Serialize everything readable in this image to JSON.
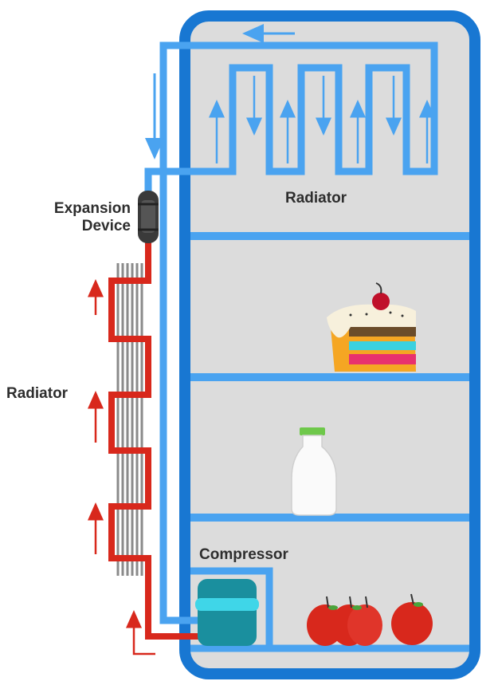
{
  "labels": {
    "expansion_device": "Expansion\nDevice",
    "radiator_inside": "Radiator",
    "radiator_outside": "Radiator",
    "compressor": "Compressor"
  },
  "colors": {
    "cold_pipe": "#4aa3f0",
    "hot_pipe": "#d8281c",
    "fridge_frame": "#1877d2",
    "fridge_interior": "#dcdcdc",
    "fins": "#8a8a8a",
    "compressor_body": "#1a8f9e",
    "compressor_band": "#3fd6e8",
    "expansion_device": "#3a3a3a"
  },
  "items_on_shelves": [
    "cake-slice",
    "milk-bottle",
    "apples"
  ]
}
